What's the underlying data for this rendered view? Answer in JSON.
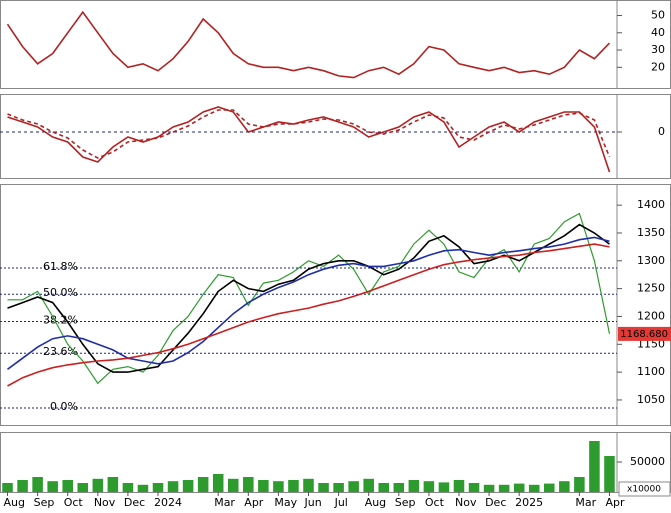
{
  "chart_data": [
    {
      "type": "line",
      "ylim": [
        8,
        59
      ],
      "yticks": [
        20,
        30,
        40,
        50
      ],
      "series": [
        {
          "color": "#b22222",
          "values": [
            45,
            32,
            22,
            28,
            40,
            52,
            40,
            28,
            20,
            22,
            18,
            25,
            35,
            48,
            40,
            28,
            22,
            20,
            20,
            18,
            20,
            18,
            15,
            14,
            18,
            20,
            16,
            22,
            32,
            30,
            22,
            20,
            18,
            20,
            17,
            18,
            16,
            20,
            30,
            25,
            34
          ]
        }
      ]
    },
    {
      "type": "line",
      "ylim": [
        -46,
        38
      ],
      "yticks": [
        0
      ],
      "grid_color": "#1a237e",
      "grid_style": "dashed",
      "series": [
        {
          "color": "#b22222",
          "style": "solid",
          "values": [
            15,
            10,
            5,
            -5,
            -10,
            -25,
            -30,
            -15,
            -5,
            -10,
            -5,
            5,
            10,
            20,
            25,
            20,
            0,
            5,
            10,
            8,
            12,
            15,
            10,
            5,
            -5,
            0,
            5,
            15,
            20,
            10,
            -15,
            -5,
            5,
            10,
            0,
            10,
            15,
            20,
            20,
            5,
            -40
          ]
        },
        {
          "color": "#b22222",
          "style": "dashed",
          "values": [
            18,
            12,
            8,
            0,
            -6,
            -18,
            -26,
            -20,
            -10,
            -8,
            -6,
            0,
            6,
            15,
            22,
            22,
            8,
            5,
            8,
            8,
            10,
            13,
            12,
            8,
            0,
            -2,
            2,
            10,
            17,
            14,
            -5,
            -8,
            0,
            7,
            3,
            7,
            12,
            17,
            19,
            12,
            -25
          ]
        }
      ]
    },
    {
      "type": "line",
      "ylim": [
        1005,
        1438
      ],
      "yticks": [
        1050,
        1100,
        1150,
        1200,
        1250,
        1300,
        1350,
        1400
      ],
      "series": [
        {
          "color": "#2e9b2e",
          "values": [
            1230,
            1230,
            1245,
            1200,
            1150,
            1120,
            1080,
            1105,
            1110,
            1100,
            1130,
            1175,
            1200,
            1240,
            1275,
            1270,
            1220,
            1260,
            1265,
            1280,
            1300,
            1290,
            1310,
            1285,
            1240,
            1280,
            1290,
            1330,
            1355,
            1330,
            1280,
            1270,
            1305,
            1320,
            1280,
            1330,
            1340,
            1370,
            1385,
            1300,
            1169
          ]
        },
        {
          "color": "#000000",
          "values": [
            1215,
            1225,
            1235,
            1225,
            1190,
            1150,
            1115,
            1100,
            1100,
            1105,
            1110,
            1140,
            1170,
            1205,
            1245,
            1265,
            1250,
            1245,
            1258,
            1265,
            1285,
            1295,
            1300,
            1300,
            1290,
            1275,
            1285,
            1305,
            1335,
            1345,
            1325,
            1295,
            1300,
            1310,
            1300,
            1315,
            1330,
            1345,
            1365,
            1350,
            1330
          ]
        },
        {
          "color": "#1f2fa8",
          "values": [
            1105,
            1125,
            1145,
            1160,
            1165,
            1160,
            1150,
            1140,
            1125,
            1120,
            1115,
            1120,
            1135,
            1155,
            1180,
            1205,
            1225,
            1240,
            1252,
            1262,
            1275,
            1285,
            1292,
            1295,
            1290,
            1290,
            1295,
            1300,
            1310,
            1318,
            1320,
            1315,
            1310,
            1315,
            1318,
            1322,
            1325,
            1330,
            1338,
            1342,
            1335
          ]
        },
        {
          "color": "#cc1f1f",
          "values": [
            1075,
            1090,
            1100,
            1108,
            1113,
            1117,
            1120,
            1122,
            1125,
            1130,
            1135,
            1142,
            1150,
            1160,
            1170,
            1180,
            1190,
            1198,
            1205,
            1210,
            1215,
            1222,
            1228,
            1236,
            1245,
            1255,
            1265,
            1275,
            1285,
            1293,
            1298,
            1302,
            1305,
            1308,
            1310,
            1315,
            1318,
            1322,
            1326,
            1330,
            1325
          ]
        }
      ],
      "levels": [
        {
          "value": 1287,
          "label": "61.8%"
        },
        {
          "value": 1240,
          "label": "50.0%"
        },
        {
          "value": 1191,
          "label": "38.2%"
        },
        {
          "value": 1134,
          "label": "23.6%"
        },
        {
          "value": 1035.6,
          "label": "0.0%"
        }
      ],
      "last_value": {
        "value": 1168.68,
        "label": "1168.680"
      }
    },
    {
      "type": "bar",
      "ylim": [
        0,
        100000
      ],
      "yticks": [
        50000
      ],
      "color": "#2e9b2e",
      "unit_label": "x10000",
      "values": [
        15000,
        20000,
        25000,
        18000,
        20000,
        15000,
        22000,
        25000,
        15000,
        12000,
        15000,
        18000,
        20000,
        25000,
        30000,
        22000,
        25000,
        20000,
        18000,
        20000,
        22000,
        15000,
        15000,
        18000,
        22000,
        15000,
        15000,
        20000,
        18000,
        16000,
        20000,
        15000,
        12000,
        12000,
        14000,
        12000,
        14000,
        18000,
        25000,
        85000,
        60000
      ],
      "categories": [
        "Aug",
        null,
        "Sep",
        null,
        "Oct",
        null,
        "Nov",
        null,
        "Dec",
        null,
        "2024",
        null,
        null,
        null,
        "Mar",
        null,
        "Apr",
        null,
        "May",
        null,
        "Jun",
        null,
        "Jul",
        null,
        "Aug",
        null,
        "Sep",
        null,
        "Oct",
        null,
        "Nov",
        null,
        "Dec",
        null,
        "2025",
        null,
        null,
        null,
        "Mar",
        null,
        "Apr"
      ]
    }
  ]
}
